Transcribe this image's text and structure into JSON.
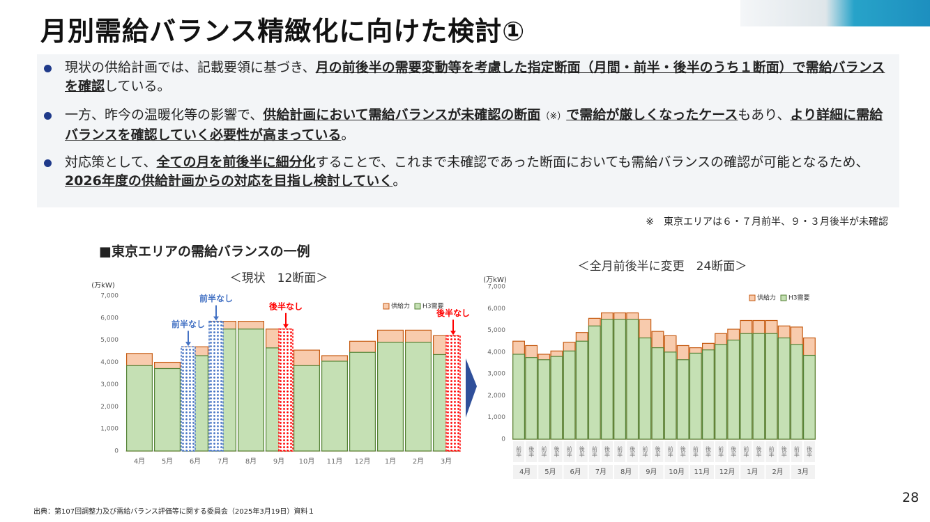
{
  "header": {
    "title": "月別需給バランス精緻化に向けた検討①"
  },
  "bullets": [
    [
      {
        "text": "現状の供給計画では、記載要領に基づき、",
        "bold": false
      },
      {
        "text": "月の前後半の需要変動等を考慮した指定断面（月間・前半・後半のうち１断面）で需給バランスを確認",
        "bold": true
      },
      {
        "text": "している。",
        "bold": false
      }
    ],
    [
      {
        "text": "一方、昨今の温暖化等の影響で、",
        "bold": false
      },
      {
        "text": "供給計画において需給バランスが未確認の断面",
        "bold": true
      },
      {
        "text": "（※）",
        "bold": false
      },
      {
        "text": "で需給が厳しくなったケース",
        "bold": true
      },
      {
        "text": "もあり、",
        "bold": false
      },
      {
        "text": "より詳細に需給バランスを確認していく必要性が高まっている",
        "bold": true
      },
      {
        "text": "。",
        "bold": false
      }
    ],
    [
      {
        "text": "対応策として、",
        "bold": false
      },
      {
        "text": "全ての月を前後半に細分化",
        "bold": true
      },
      {
        "text": "することで、これまで未確認であった断面においても需給バランスの確認が可能となるため、",
        "bold": false
      },
      {
        "text": "2026年度の供給計画からの対応を目指し検討していく",
        "bold": true
      },
      {
        "text": "。",
        "bold": false
      }
    ]
  ],
  "note": "※　東京エリアは６・７月前半、９・３月後半が未確認",
  "section_label": "■東京エリアの需給バランスの一例",
  "source": "出典：第107回調整力及び需給バランス評価等に関する委員会（2025年3月19日）資料１",
  "page_number": "28",
  "chart_data": [
    {
      "type": "bar",
      "title": "＜現状　12断面＞",
      "y_unit": "(万kW)",
      "categories": [
        "4月",
        "5月",
        "6月",
        "7月",
        "8月",
        "9月",
        "10月",
        "11月",
        "12月",
        "1月",
        "2月",
        "3月"
      ],
      "series": [
        {
          "name": "供給力",
          "color": "#f8cbad",
          "values": [
            4400,
            4000,
            4700,
            5850,
            5850,
            5500,
            4550,
            4300,
            4950,
            5450,
            5450,
            5200
          ]
        },
        {
          "name": "H3需要",
          "color": "#c5e0b4",
          "values": [
            3850,
            3720,
            4300,
            5500,
            5500,
            4650,
            3850,
            4050,
            4450,
            4900,
            4900,
            4350
          ]
        }
      ],
      "ylim": [
        0,
        7000
      ],
      "yticks": [
        0,
        {
          "value": 1000,
          "label": "1,000"
        },
        {
          "value": 2000,
          "label": "2,000"
        },
        {
          "value": 3000,
          "label": "3,000"
        },
        {
          "value": 4000,
          "label": "4,000"
        },
        {
          "value": 5000,
          "label": "5,000"
        },
        {
          "value": 6000,
          "label": "6,000"
        },
        {
          "value": 7000,
          "label": "7,000"
        }
      ],
      "annotations": [
        {
          "text": "前半なし",
          "at": "6月",
          "side": "left",
          "color": "#4472c4"
        },
        {
          "text": "前半なし",
          "at": "7月",
          "side": "left",
          "color": "#4472c4"
        },
        {
          "text": "後半なし",
          "at": "9月",
          "side": "right",
          "color": "#ff0000"
        },
        {
          "text": "後半なし",
          "at": "3月",
          "side": "right",
          "color": "#ff0000"
        }
      ]
    },
    {
      "type": "bar",
      "title": "＜全月前後半に変更　24断面＞",
      "y_unit": "(万kW)",
      "categories": [
        "前半",
        "後半",
        "前半",
        "後半",
        "前半",
        "後半",
        "前半",
        "後半",
        "前半",
        "後半",
        "前半",
        "後半",
        "前半",
        "後半",
        "前半",
        "後半",
        "前半",
        "後半",
        "前半",
        "後半",
        "前半",
        "後半",
        "前半",
        "後半"
      ],
      "groups": [
        "4月",
        "5月",
        "6月",
        "7月",
        "8月",
        "9月",
        "10月",
        "11月",
        "12月",
        "1月",
        "2月",
        "3月"
      ],
      "series": [
        {
          "name": "供給力",
          "color": "#f8cbad",
          "values": [
            4500,
            4300,
            3900,
            4050,
            4450,
            4900,
            5550,
            5800,
            5800,
            5800,
            5500,
            4950,
            4750,
            4300,
            4200,
            4400,
            4850,
            5050,
            5450,
            5450,
            5450,
            5200,
            5150,
            4650
          ]
        },
        {
          "name": "H3需要",
          "color": "#c5e0b4",
          "values": [
            3900,
            3750,
            3650,
            3800,
            4050,
            4500,
            5200,
            5500,
            5500,
            5500,
            4650,
            4200,
            4000,
            3650,
            3950,
            4100,
            4350,
            4550,
            4850,
            4850,
            4850,
            4650,
            4350,
            3850
          ]
        }
      ],
      "ylim": [
        0,
        7000
      ],
      "yticks": [
        0,
        {
          "value": 1000,
          "label": "1,000"
        },
        {
          "value": 2000,
          "label": "2,000"
        },
        {
          "value": 3000,
          "label": "3,000"
        },
        {
          "value": 4000,
          "label": "4,000"
        },
        {
          "value": 5000,
          "label": "5,000"
        },
        {
          "value": 6000,
          "label": "6,000"
        },
        {
          "value": 7000,
          "label": "7,000"
        }
      ]
    }
  ]
}
